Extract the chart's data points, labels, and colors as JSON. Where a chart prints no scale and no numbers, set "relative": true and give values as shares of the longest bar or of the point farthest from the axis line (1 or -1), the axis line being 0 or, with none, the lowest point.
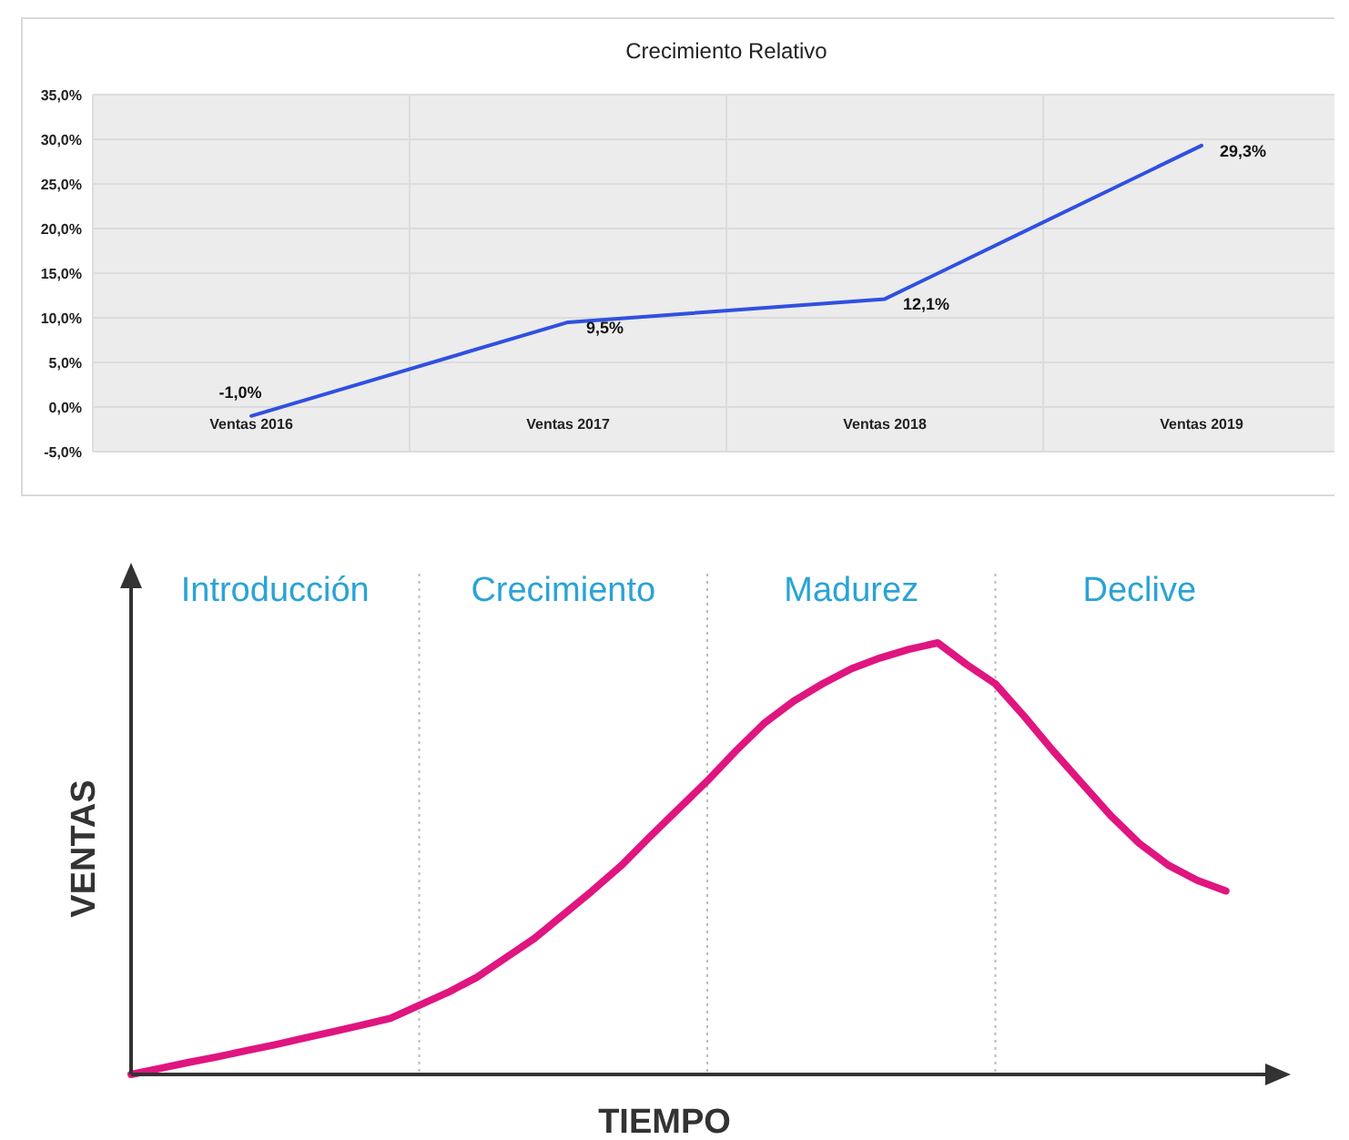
{
  "chart_data": [
    {
      "type": "line",
      "title": "Crecimiento Relativo",
      "categories": [
        "Ventas 2016",
        "Ventas 2017",
        "Ventas 2018",
        "Ventas 2019"
      ],
      "series": [
        {
          "color": "#3050e0",
          "values": [
            -1.0,
            9.5,
            12.1,
            29.3
          ],
          "value_labels": [
            "-1,0%",
            "9,5%",
            "12,1%",
            "29,3%"
          ]
        }
      ],
      "ylim": [
        -5,
        35
      ],
      "yticks": [
        {
          "value": -5,
          "label": "-5,0%"
        },
        {
          "value": 0,
          "label": "0,0%"
        },
        {
          "value": 5,
          "label": "5,0%"
        },
        {
          "value": 10,
          "label": "10,0%"
        },
        {
          "value": 15,
          "label": "15,0%"
        },
        {
          "value": 20,
          "label": "20,0%"
        },
        {
          "value": 25,
          "label": "25,0%"
        },
        {
          "value": 30,
          "label": "30,0%"
        },
        {
          "value": 35,
          "label": "35,0%"
        }
      ],
      "grid": true,
      "marker": "none"
    },
    {
      "type": "line",
      "relative": true,
      "xlabel": "TIEMPO",
      "ylabel": "VENTAS",
      "categories": [
        null,
        null,
        null,
        null,
        null,
        null,
        null,
        null,
        null,
        null,
        null,
        null,
        null,
        null,
        null,
        null,
        null,
        null,
        null,
        null,
        null,
        null,
        null,
        null,
        null,
        null,
        null,
        null,
        null,
        null,
        null,
        null,
        null,
        null,
        null,
        null,
        null,
        null,
        null
      ],
      "series": [
        {
          "color": "#e0157f",
          "values": [
            0,
            0.014,
            0.028,
            0.041,
            0.055,
            0.069,
            0.084,
            0.099,
            0.114,
            0.13,
            0.16,
            0.19,
            0.225,
            0.27,
            0.315,
            0.37,
            0.425,
            0.483,
            0.55,
            0.615,
            0.68,
            0.75,
            0.815,
            0.865,
            0.905,
            0.94,
            0.965,
            0.985,
            1,
            0.95,
            0.905,
            0.83,
            0.75,
            0.675,
            0.6,
            0.535,
            0.485,
            0.45,
            0.425
          ]
        }
      ],
      "annotations": [
        "Introducción",
        "Crecimiento",
        "Madurez",
        "Declive"
      ],
      "grid": "x",
      "marker": "none"
    }
  ]
}
